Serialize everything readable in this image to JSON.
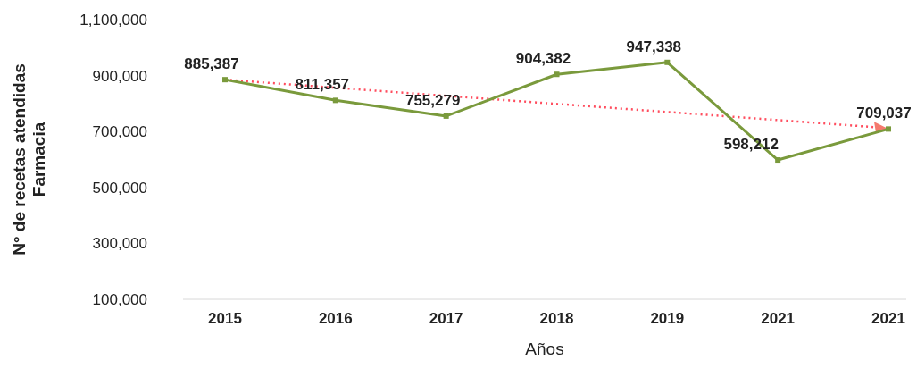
{
  "chart_data": {
    "type": "line",
    "xlabel": "Años",
    "ylabel": "N° de recetas atendidas\nFarmacia",
    "categories": [
      "2015",
      "2016",
      "2017",
      "2018",
      "2019",
      "2021",
      "2021"
    ],
    "series": [
      {
        "color": "#7a9a3c",
        "values": [
          885387,
          811357,
          755279,
          904382,
          947338,
          598212,
          709037
        ],
        "value_labels": [
          "885,387",
          "811,357",
          "755,279",
          "904,382",
          "947,338",
          "598,212",
          "709,037"
        ]
      }
    ],
    "ylim": [
      100000,
      1100000
    ],
    "yticks": [
      {
        "value": 100000,
        "label": "100,000"
      },
      {
        "value": 300000,
        "label": "300,000"
      },
      {
        "value": 500000,
        "label": "500,000"
      },
      {
        "value": 700000,
        "label": "700,000"
      },
      {
        "value": 900000,
        "label": "900,000"
      },
      {
        "value": 1100000,
        "label": "1,100,000"
      }
    ],
    "grid": false,
    "marker": "square",
    "line_style": "solid"
  }
}
